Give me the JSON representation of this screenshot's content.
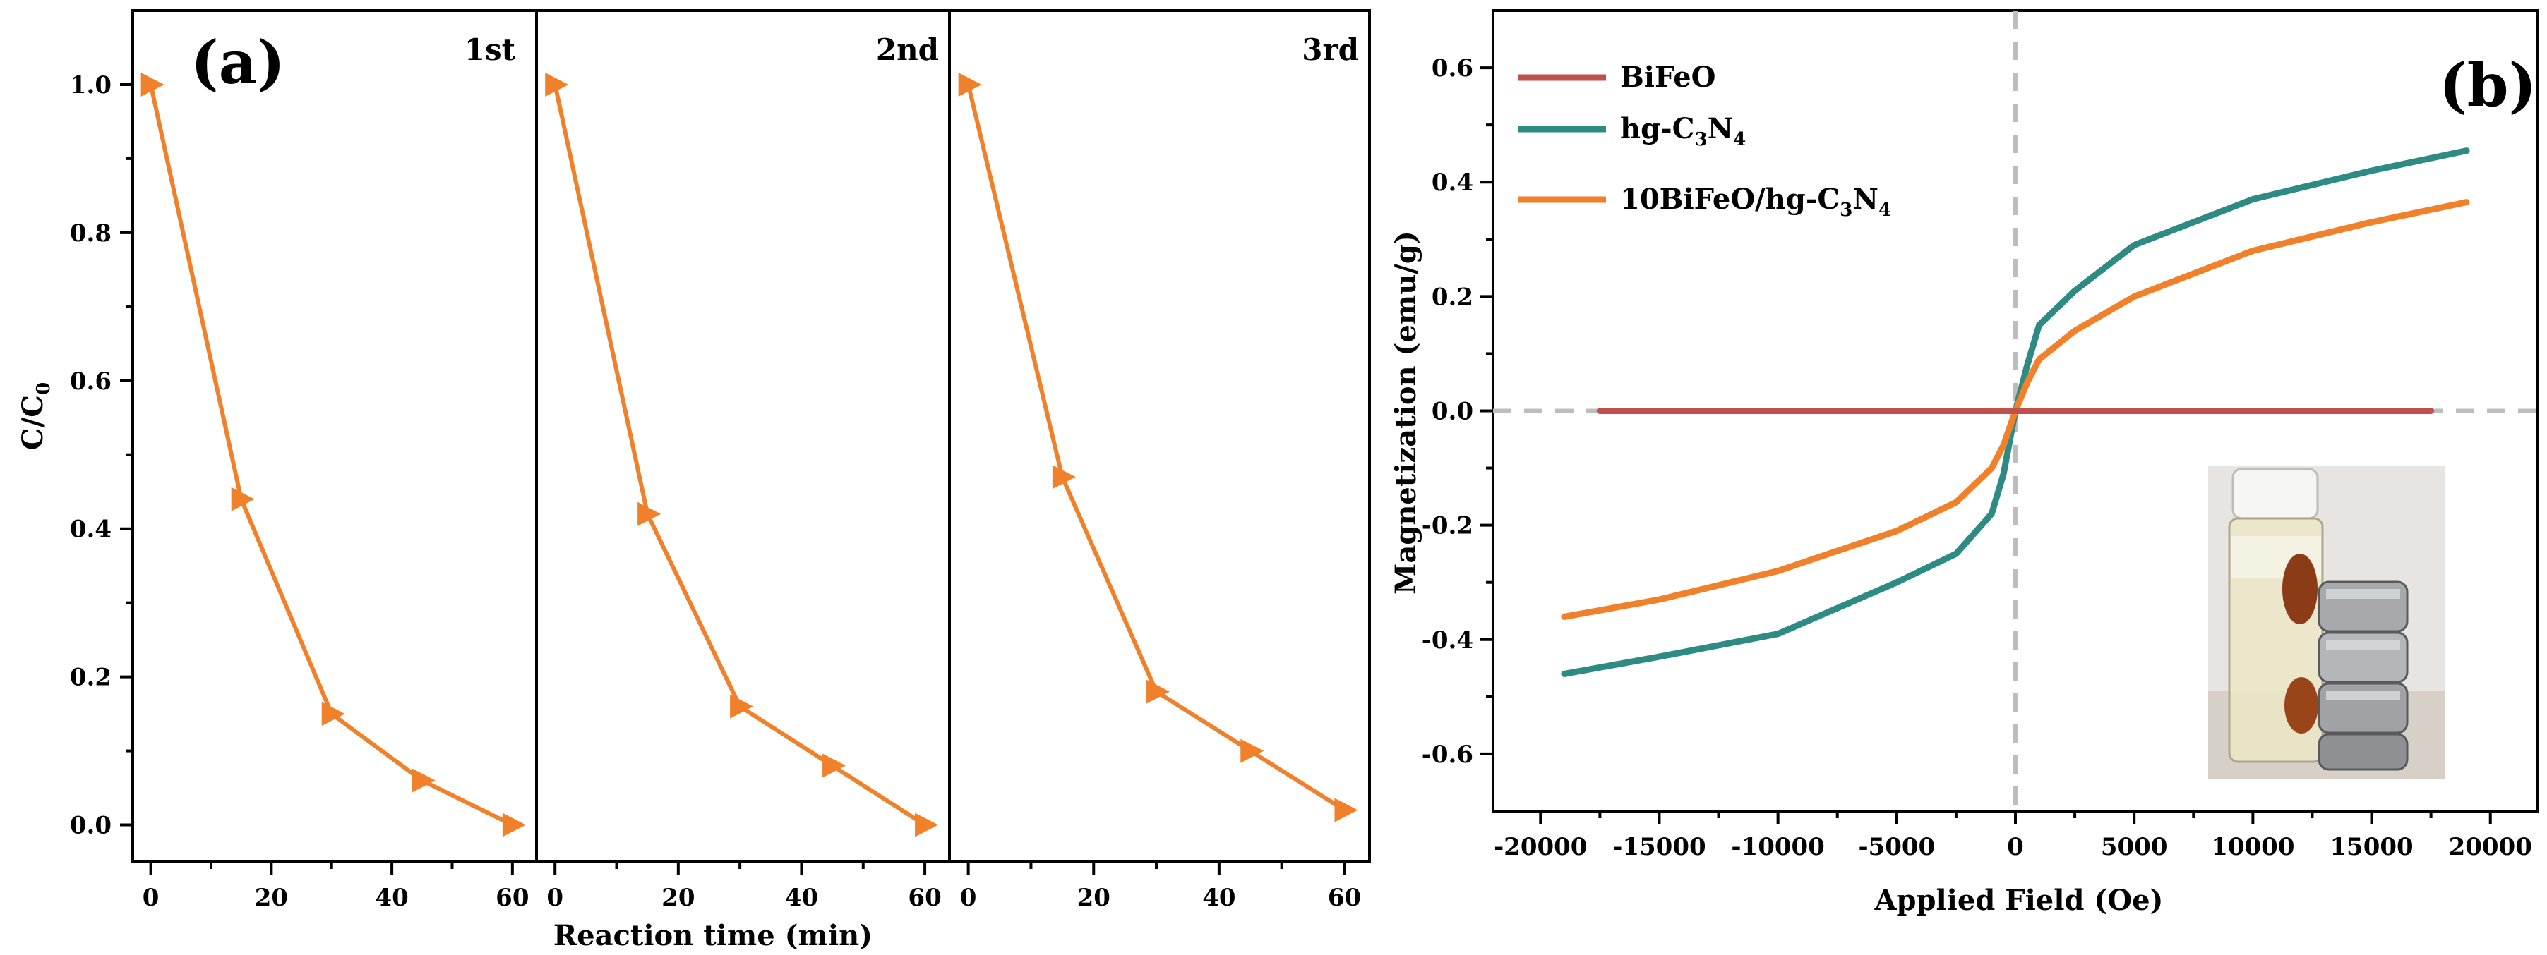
{
  "chart_data": [
    {
      "id": "a",
      "type": "line",
      "panel_label": "(a)",
      "ylabel_main": "C/C",
      "ylabel_sub": "0",
      "xlabel": "Reaction time (min)",
      "ylim": [
        -0.05,
        1.1
      ],
      "yticks": [
        "0.0",
        "0.2",
        "0.4",
        "0.6",
        "0.8",
        "1.0"
      ],
      "ytick_values": [
        0.0,
        0.2,
        0.4,
        0.6,
        0.8,
        1.0
      ],
      "xlim": [
        -3,
        64
      ],
      "xticks": [
        "0",
        "20",
        "40",
        "60"
      ],
      "xtick_values": [
        0,
        20,
        40,
        60
      ],
      "marker": "right-triangle",
      "color": "#f0802a",
      "series": [
        {
          "name": "1st",
          "x": [
            0,
            15,
            30,
            45,
            60
          ],
          "values": [
            1.0,
            0.44,
            0.15,
            0.06,
            0.0
          ]
        },
        {
          "name": "2nd",
          "x": [
            0,
            15,
            30,
            45,
            60
          ],
          "values": [
            1.0,
            0.42,
            0.16,
            0.08,
            0.0
          ]
        },
        {
          "name": "3rd",
          "x": [
            0,
            15,
            30,
            45,
            60
          ],
          "values": [
            1.0,
            0.47,
            0.18,
            0.1,
            0.02
          ]
        }
      ]
    },
    {
      "id": "b",
      "type": "line",
      "panel_label": "(b)",
      "xlabel": "Applied Field (Oe)",
      "ylabel": "Magnetization (emu/g)",
      "xlim": [
        -22000,
        22000
      ],
      "ylim": [
        -0.7,
        0.7
      ],
      "xticks": [
        "-20000",
        "-15000",
        "-10000",
        "-5000",
        "0",
        "5000",
        "10000",
        "15000",
        "20000"
      ],
      "xtick_values": [
        -20000,
        -15000,
        -10000,
        -5000,
        0,
        5000,
        10000,
        15000,
        20000
      ],
      "yticks": [
        "-0.6",
        "-0.4",
        "-0.2",
        "0.0",
        "0.2",
        "0.4",
        "0.6"
      ],
      "ytick_values": [
        -0.6,
        -0.4,
        -0.2,
        0.0,
        0.2,
        0.4,
        0.6
      ],
      "legend_position": "top-left",
      "inset": "photo of vial with magnet",
      "series": [
        {
          "name": "BiFeO",
          "legend_main": "BiFeO",
          "color": "#c0504d",
          "x": [
            -17500,
            17500
          ],
          "values": [
            0.0,
            0.0
          ]
        },
        {
          "name": "hg-C3N4",
          "legend_main": "hg-C",
          "legend_sub1": "3",
          "legend_mid": "N",
          "legend_sub2": "4",
          "color": "#2e8b84",
          "x": [
            -19000,
            -15000,
            -10000,
            -5000,
            -2500,
            -1000,
            -500,
            0,
            500,
            1000,
            2500,
            5000,
            10000,
            15000,
            19000
          ],
          "values": [
            -0.46,
            -0.43,
            -0.39,
            -0.3,
            -0.25,
            -0.18,
            -0.11,
            0.0,
            0.08,
            0.15,
            0.21,
            0.29,
            0.37,
            0.42,
            0.455
          ]
        },
        {
          "name": "10BiFeO/hg-C3N4",
          "legend_main": "10BiFeO/hg-C",
          "legend_sub1": "3",
          "legend_mid": "N",
          "legend_sub2": "4",
          "color": "#f0802a",
          "x": [
            -19000,
            -15000,
            -10000,
            -5000,
            -2500,
            -1000,
            -500,
            0,
            500,
            1000,
            2500,
            5000,
            10000,
            15000,
            19000
          ],
          "values": [
            -0.36,
            -0.33,
            -0.28,
            -0.21,
            -0.16,
            -0.1,
            -0.06,
            0.0,
            0.05,
            0.09,
            0.14,
            0.2,
            0.28,
            0.33,
            0.365
          ]
        }
      ]
    }
  ]
}
